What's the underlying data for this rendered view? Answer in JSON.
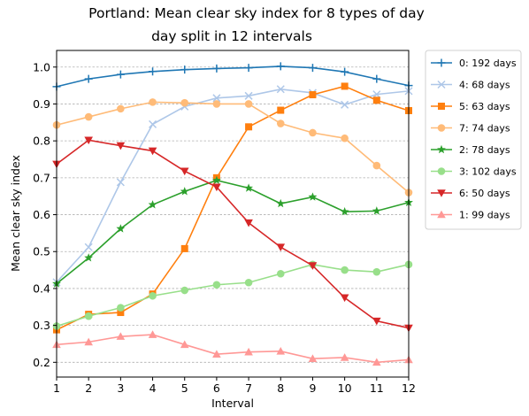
{
  "chart_data": {
    "type": "line",
    "title_line1": "Portland: Mean clear sky index for 8 types of day",
    "title_line2": "day split in 12 intervals",
    "xlabel": "Interval",
    "ylabel": "Mean clear sky index",
    "xlim": [
      1,
      12
    ],
    "ylim": [
      0.16,
      1.045
    ],
    "x_ticks": [
      1,
      2,
      3,
      4,
      5,
      6,
      7,
      8,
      9,
      10,
      11,
      12
    ],
    "y_ticks": [
      0.2,
      0.3,
      0.4,
      0.5,
      0.6,
      0.7,
      0.8,
      0.9,
      1.0
    ],
    "y_tick_labels": [
      "0.2",
      "0.3",
      "0.4",
      "0.5",
      "0.6",
      "0.7",
      "0.8",
      "0.9",
      "1.0"
    ],
    "grid": "horizontal dashed",
    "legend_position": "outside-right",
    "x": [
      1,
      2,
      3,
      4,
      5,
      6,
      7,
      8,
      9,
      10,
      11,
      12
    ],
    "series": [
      {
        "name": "0: 192 days",
        "color": "#1f77b4",
        "marker": "plus",
        "values": [
          0.947,
          0.968,
          0.98,
          0.988,
          0.993,
          0.996,
          0.998,
          1.002,
          0.998,
          0.987,
          0.968,
          0.95
        ]
      },
      {
        "name": "4: 68 days",
        "color": "#aec7e8",
        "marker": "x",
        "values": [
          0.417,
          0.512,
          0.688,
          0.845,
          0.893,
          0.916,
          0.922,
          0.94,
          0.93,
          0.898,
          0.926,
          0.935
        ]
      },
      {
        "name": "5: 63 days",
        "color": "#ff7f0e",
        "marker": "square",
        "values": [
          0.288,
          0.33,
          0.335,
          0.385,
          0.508,
          0.7,
          0.838,
          0.883,
          0.925,
          0.948,
          0.91,
          0.882
        ]
      },
      {
        "name": "7: 74 days",
        "color": "#ffbb78",
        "marker": "circle",
        "values": [
          0.843,
          0.865,
          0.887,
          0.905,
          0.903,
          0.9,
          0.9,
          0.847,
          0.822,
          0.807,
          0.733,
          0.66
        ]
      },
      {
        "name": "2: 78 days",
        "color": "#2ca02c",
        "marker": "star",
        "values": [
          0.413,
          0.483,
          0.562,
          0.627,
          0.663,
          0.693,
          0.672,
          0.63,
          0.648,
          0.608,
          0.61,
          0.633
        ]
      },
      {
        "name": "3: 102 days",
        "color": "#98df8a",
        "marker": "circle",
        "values": [
          0.298,
          0.325,
          0.348,
          0.38,
          0.395,
          0.41,
          0.416,
          0.44,
          0.465,
          0.45,
          0.445,
          0.465
        ]
      },
      {
        "name": "6: 50 days",
        "color": "#d62728",
        "marker": "triangle-down",
        "values": [
          0.737,
          0.802,
          0.787,
          0.773,
          0.718,
          0.675,
          0.578,
          0.512,
          0.462,
          0.375,
          0.312,
          0.293
        ]
      },
      {
        "name": "1: 99 days",
        "color": "#ff9896",
        "marker": "triangle-up",
        "values": [
          0.248,
          0.255,
          0.27,
          0.275,
          0.248,
          0.222,
          0.228,
          0.23,
          0.21,
          0.213,
          0.2,
          0.207
        ]
      }
    ]
  }
}
